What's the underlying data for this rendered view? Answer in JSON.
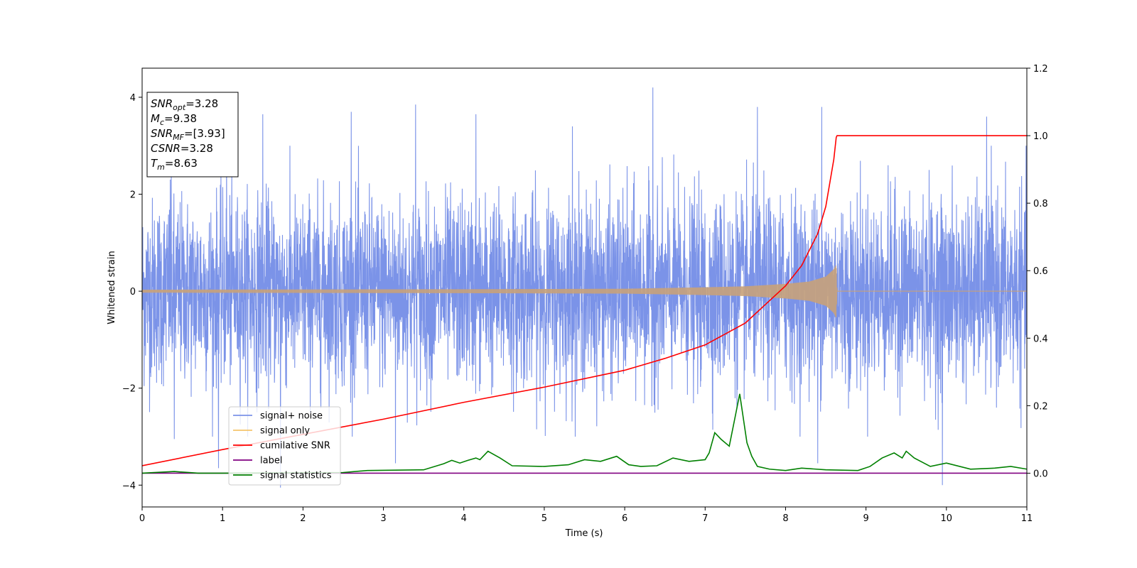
{
  "chart_data": {
    "type": "line",
    "xlabel": "Time (s)",
    "ylabel": "Whitened strain",
    "xlim": [
      0,
      11
    ],
    "ylim_left": [
      -4.45,
      4.6
    ],
    "ylim_right": [
      -0.1,
      1.2
    ],
    "x_ticks": [
      "0",
      "1",
      "2",
      "3",
      "4",
      "5",
      "6",
      "7",
      "8",
      "9",
      "10",
      "11"
    ],
    "y_ticks_left": [
      "−4",
      "−2",
      "0",
      "2",
      "4"
    ],
    "y_ticks_right": [
      "0.0",
      "0.2",
      "0.4",
      "0.6",
      "0.8",
      "1.0",
      "1.2"
    ],
    "info_box": [
      {
        "main": "SNR",
        "sub": "opt",
        "rest": "=3.28"
      },
      {
        "main": "M",
        "sub": "c",
        "rest": "=9.38"
      },
      {
        "main": "SNR",
        "sub": "MF",
        "rest": "=[3.93]"
      },
      {
        "main": "CSNR",
        "sub": "",
        "rest": "=3.28"
      },
      {
        "main": "T",
        "sub": "m",
        "rest": "=8.63"
      }
    ],
    "legend": {
      "position": "lower-left",
      "entries": [
        {
          "label": "signal+ noise",
          "color": "#7b93e8"
        },
        {
          "label": "signal only",
          "color": "#f5c56b"
        },
        {
          "label": "cumilative SNR",
          "color": "#ff0000"
        },
        {
          "label": "label",
          "color": "#800080"
        },
        {
          "label": "signal statistics",
          "color": "#008000"
        }
      ]
    },
    "series": [
      {
        "name": "signal+ noise",
        "axis": "left",
        "color": "#7b93e8",
        "description_range": [
          -4.05,
          4.2
        ],
        "peaks": [
          {
            "x": 0.35,
            "y": 2.3
          },
          {
            "x": 0.4,
            "y": -3.05
          },
          {
            "x": 0.95,
            "y": -3.65
          },
          {
            "x": 1.05,
            "y": 3.3
          },
          {
            "x": 1.5,
            "y": 3.65
          },
          {
            "x": 1.72,
            "y": -4.05
          },
          {
            "x": 2.6,
            "y": 3.7
          },
          {
            "x": 3.15,
            "y": -3.55
          },
          {
            "x": 3.4,
            "y": 3.85
          },
          {
            "x": 4.15,
            "y": 3.65
          },
          {
            "x": 5.35,
            "y": 3.4
          },
          {
            "x": 6.35,
            "y": 4.2
          },
          {
            "x": 7.65,
            "y": 3.8
          },
          {
            "x": 8.4,
            "y": -3.55
          },
          {
            "x": 8.45,
            "y": 3.8
          },
          {
            "x": 9.95,
            "y": -4.0
          },
          {
            "x": 10.5,
            "y": 3.6
          }
        ]
      },
      {
        "name": "signal only",
        "axis": "left",
        "color": "#c8a27a",
        "envelope": [
          [
            0,
            0.03
          ],
          [
            4,
            0.04
          ],
          [
            6,
            0.05
          ],
          [
            7,
            0.08
          ],
          [
            7.5,
            0.1
          ],
          [
            8,
            0.15
          ],
          [
            8.3,
            0.2
          ],
          [
            8.5,
            0.3
          ],
          [
            8.6,
            0.45
          ],
          [
            8.63,
            0.55
          ],
          [
            8.64,
            0
          ]
        ]
      },
      {
        "name": "cumilative SNR",
        "axis": "right",
        "color": "#ff0000",
        "x": [
          0,
          1,
          2,
          3,
          4,
          5,
          6,
          6.5,
          7,
          7.5,
          8,
          8.2,
          8.4,
          8.5,
          8.6,
          8.63,
          8.64,
          11
        ],
        "y": [
          0.022,
          0.07,
          0.115,
          0.16,
          0.21,
          0.255,
          0.305,
          0.34,
          0.38,
          0.445,
          0.555,
          0.615,
          0.71,
          0.79,
          0.93,
          0.995,
          1.0,
          1.0
        ]
      },
      {
        "name": "label",
        "axis": "right",
        "color": "#800080",
        "x": [
          0,
          11
        ],
        "y": [
          0.0,
          0.0
        ]
      },
      {
        "name": "signal statistics",
        "axis": "right",
        "color": "#008000",
        "x": [
          0,
          0.4,
          0.7,
          1.0,
          2.5,
          2.8,
          3.5,
          3.75,
          3.85,
          3.95,
          4.05,
          4.15,
          4.2,
          4.3,
          4.45,
          4.6,
          5.0,
          5.3,
          5.5,
          5.7,
          5.9,
          6.05,
          6.2,
          6.4,
          6.6,
          6.8,
          7.0,
          7.05,
          7.12,
          7.2,
          7.3,
          7.38,
          7.43,
          7.52,
          7.58,
          7.65,
          7.8,
          8.0,
          8.2,
          8.5,
          8.9,
          9.05,
          9.2,
          9.35,
          9.45,
          9.5,
          9.6,
          9.8,
          10.0,
          10.3,
          10.6,
          10.8,
          11
        ],
        "y": [
          0.0,
          0.005,
          0.0,
          0.0,
          0.002,
          0.008,
          0.01,
          0.028,
          0.038,
          0.03,
          0.038,
          0.045,
          0.04,
          0.065,
          0.045,
          0.022,
          0.02,
          0.025,
          0.04,
          0.035,
          0.05,
          0.025,
          0.02,
          0.022,
          0.045,
          0.035,
          0.04,
          0.06,
          0.12,
          0.1,
          0.08,
          0.175,
          0.235,
          0.09,
          0.05,
          0.02,
          0.012,
          0.008,
          0.015,
          0.01,
          0.008,
          0.02,
          0.045,
          0.06,
          0.045,
          0.065,
          0.045,
          0.02,
          0.03,
          0.012,
          0.015,
          0.02,
          0.012
        ]
      }
    ]
  }
}
